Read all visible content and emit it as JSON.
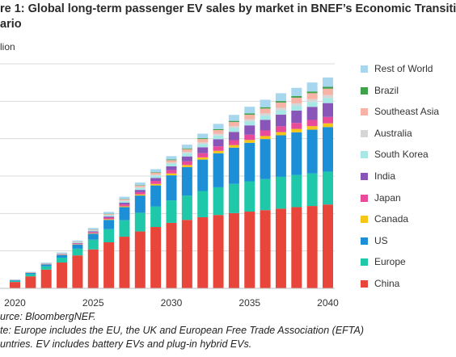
{
  "title": {
    "line1": "re 1: Global long-term passenger EV sales by market in BNEF’s Economic Transiti",
    "line2": "ario"
  },
  "unit_label": "lion",
  "source": "urce: BloombergNEF.",
  "note_line1": "te: Europe includes the EU, the UK and European Free Trade Association (EFTA)",
  "note_line2": "untries. EV includes battery EVs and plug-in hybrid EVs.",
  "chart_data": {
    "type": "bar",
    "stacked": true,
    "x": [
      2020,
      2021,
      2022,
      2023,
      2024,
      2025,
      2026,
      2027,
      2028,
      2029,
      2030,
      2031,
      2032,
      2033,
      2034,
      2035,
      2036,
      2037,
      2038,
      2039,
      2040
    ],
    "x_tick_labels": [
      "2020",
      "2025",
      "2030",
      "2035",
      "2040"
    ],
    "y_range": [
      0,
      6
    ],
    "grid": true,
    "legend_position": "right",
    "series": [
      {
        "name": "China",
        "color": "#e8463a",
        "values": [
          0.17,
          0.32,
          0.5,
          0.69,
          0.88,
          1.04,
          1.23,
          1.38,
          1.52,
          1.64,
          1.75,
          1.83,
          1.9,
          1.96,
          2.01,
          2.05,
          2.09,
          2.13,
          2.17,
          2.2,
          2.24
        ]
      },
      {
        "name": "Europe",
        "color": "#1ec8a9",
        "values": [
          0.03,
          0.06,
          0.09,
          0.13,
          0.18,
          0.26,
          0.35,
          0.44,
          0.5,
          0.55,
          0.6,
          0.65,
          0.7,
          0.74,
          0.78,
          0.81,
          0.83,
          0.85,
          0.86,
          0.87,
          0.88
        ]
      },
      {
        "name": "US",
        "color": "#1c8fd6",
        "values": [
          0.02,
          0.03,
          0.05,
          0.07,
          0.11,
          0.16,
          0.25,
          0.35,
          0.46,
          0.56,
          0.67,
          0.76,
          0.84,
          0.91,
          0.97,
          1.03,
          1.07,
          1.11,
          1.14,
          1.17,
          1.19
        ]
      },
      {
        "name": "Canada",
        "color": "#f5c518",
        "values": [
          0.002,
          0.004,
          0.006,
          0.008,
          0.01,
          0.014,
          0.018,
          0.022,
          0.03,
          0.04,
          0.05,
          0.055,
          0.06,
          0.065,
          0.07,
          0.075,
          0.08,
          0.085,
          0.09,
          0.095,
          0.1
        ]
      },
      {
        "name": "Japan",
        "color": "#e94b9a",
        "values": [
          0.003,
          0.005,
          0.008,
          0.012,
          0.02,
          0.03,
          0.04,
          0.05,
          0.06,
          0.08,
          0.09,
          0.1,
          0.11,
          0.12,
          0.13,
          0.14,
          0.15,
          0.155,
          0.16,
          0.165,
          0.17
        ]
      },
      {
        "name": "India",
        "color": "#8a55b8",
        "values": [
          0.001,
          0.002,
          0.004,
          0.007,
          0.012,
          0.02,
          0.03,
          0.045,
          0.06,
          0.08,
          0.1,
          0.13,
          0.16,
          0.19,
          0.22,
          0.25,
          0.28,
          0.31,
          0.33,
          0.35,
          0.37
        ]
      },
      {
        "name": "South Korea",
        "color": "#a7e7e4",
        "values": [
          0.003,
          0.005,
          0.008,
          0.012,
          0.018,
          0.025,
          0.035,
          0.045,
          0.055,
          0.065,
          0.075,
          0.085,
          0.09,
          0.1,
          0.105,
          0.11,
          0.115,
          0.12,
          0.125,
          0.13,
          0.135
        ]
      },
      {
        "name": "Australia",
        "color": "#d6d6d6",
        "values": [
          0.001,
          0.002,
          0.003,
          0.004,
          0.006,
          0.008,
          0.012,
          0.016,
          0.02,
          0.025,
          0.03,
          0.035,
          0.04,
          0.045,
          0.05,
          0.055,
          0.06,
          0.065,
          0.07,
          0.075,
          0.08
        ]
      },
      {
        "name": "Southeast Asia",
        "color": "#f7b3a5",
        "values": [
          0.001,
          0.002,
          0.003,
          0.005,
          0.008,
          0.012,
          0.02,
          0.03,
          0.04,
          0.05,
          0.06,
          0.075,
          0.09,
          0.1,
          0.11,
          0.12,
          0.13,
          0.14,
          0.15,
          0.16,
          0.17
        ]
      },
      {
        "name": "Brazil",
        "color": "#3fa24b",
        "values": [
          0.001,
          0.001,
          0.002,
          0.003,
          0.004,
          0.006,
          0.008,
          0.01,
          0.012,
          0.015,
          0.018,
          0.02,
          0.023,
          0.026,
          0.03,
          0.033,
          0.036,
          0.04,
          0.043,
          0.046,
          0.05
        ]
      },
      {
        "name": "Rest of World",
        "color": "#a7d7ef",
        "values": [
          0.005,
          0.01,
          0.015,
          0.02,
          0.03,
          0.04,
          0.05,
          0.06,
          0.07,
          0.08,
          0.09,
          0.1,
          0.12,
          0.14,
          0.16,
          0.18,
          0.2,
          0.21,
          0.22,
          0.24,
          0.25
        ]
      }
    ]
  }
}
